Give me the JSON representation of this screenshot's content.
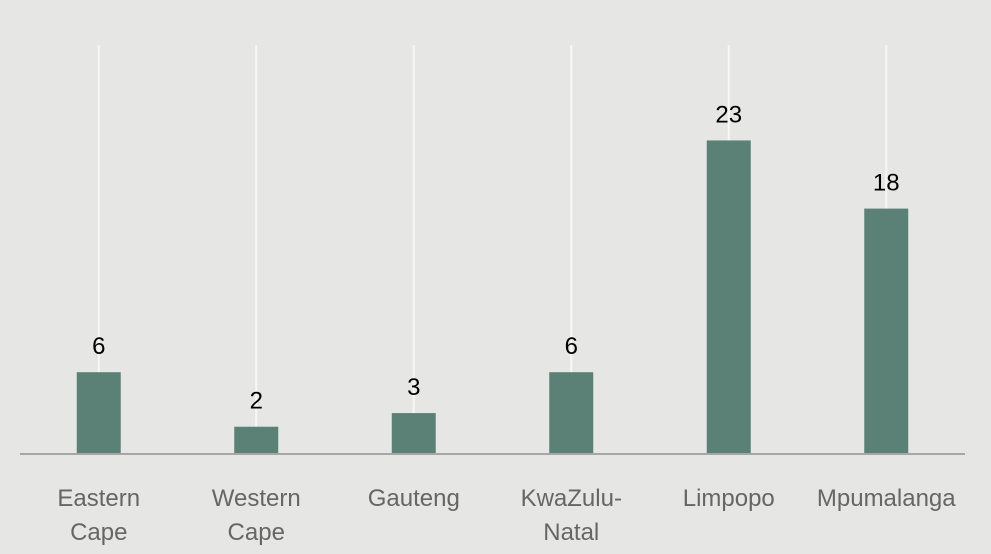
{
  "chart_data": {
    "type": "bar",
    "categories": [
      "Eastern Cape",
      "Western Cape",
      "Gauteng",
      "KwaZulu-Natal",
      "Limpopo",
      "Mpumalanga"
    ],
    "values": [
      6,
      2,
      3,
      6,
      23,
      18
    ],
    "color": "#5b8177",
    "ylim": [
      0,
      30
    ]
  }
}
